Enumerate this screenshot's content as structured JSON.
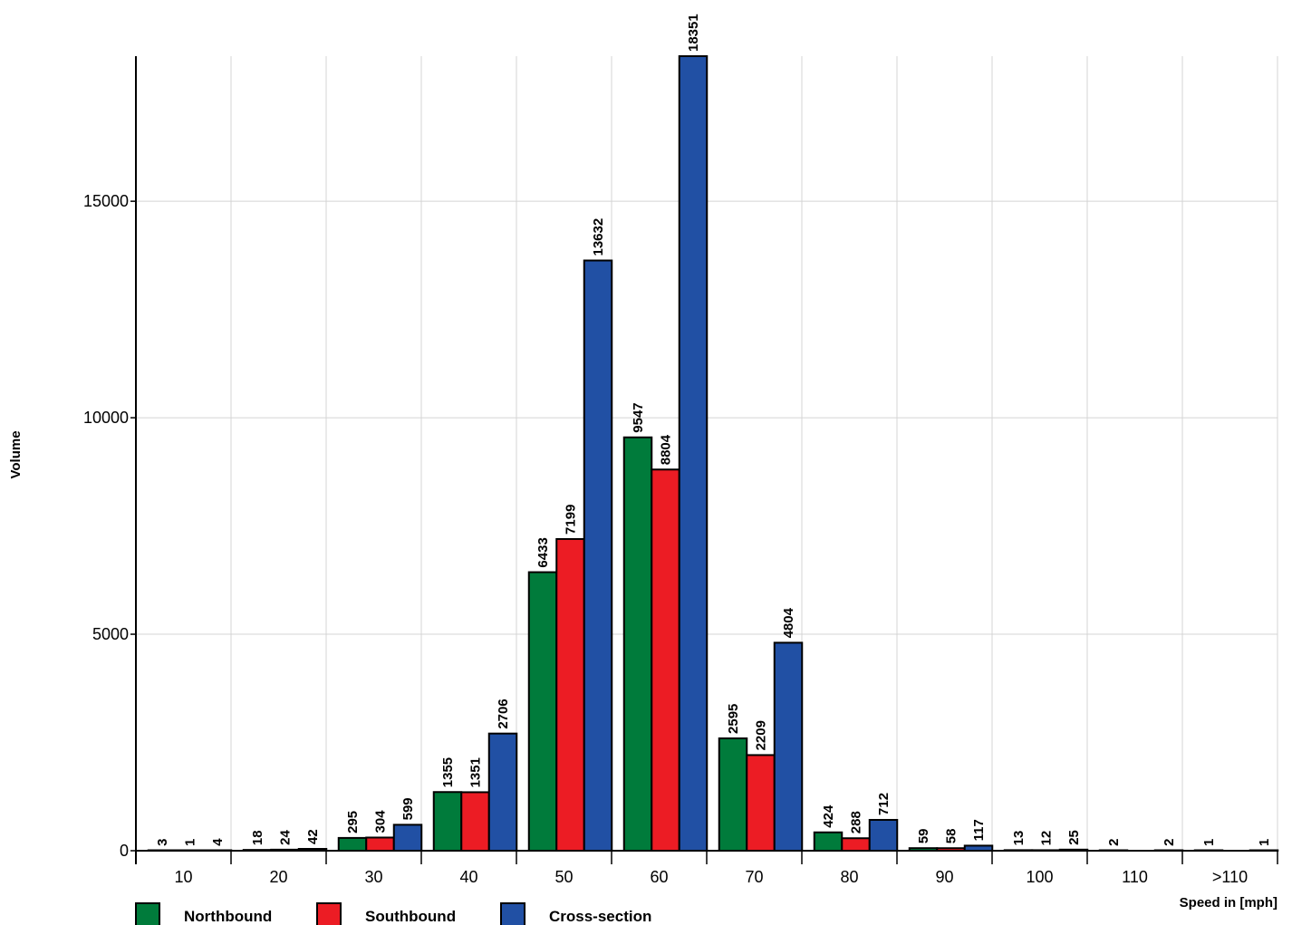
{
  "chart_data": {
    "type": "bar",
    "ylabel": "Volume",
    "xlabel": "Speed in [mph]",
    "ylim": [
      0,
      18351
    ],
    "y_ticks": [
      0,
      5000,
      10000,
      15000
    ],
    "grid": true,
    "legend_position": "bottom-left",
    "categories": [
      "10",
      "20",
      "30",
      "40",
      "50",
      "60",
      "70",
      "80",
      "90",
      "100",
      "110",
      ">110"
    ],
    "series": [
      {
        "name": "Northbound",
        "color": "#007b3b",
        "values": [
          3,
          18,
          295,
          1355,
          6433,
          9547,
          2595,
          424,
          59,
          13,
          2,
          1
        ],
        "labels": [
          "3",
          "18",
          "295",
          "1355",
          "6433",
          "9547",
          "2595",
          "424",
          "59",
          "13",
          "2",
          "1"
        ]
      },
      {
        "name": "Southbound",
        "color": "#ec1c24",
        "values": [
          1,
          24,
          304,
          1351,
          7199,
          8804,
          2209,
          288,
          58,
          12,
          0,
          0
        ],
        "labels": [
          "1",
          "24",
          "304",
          "1351",
          "7199",
          "8804",
          "2209",
          "288",
          "58",
          "12",
          "",
          ""
        ]
      },
      {
        "name": "Cross-section",
        "color": "#2150a4",
        "values": [
          4,
          42,
          599,
          2706,
          13632,
          18351,
          4804,
          712,
          117,
          25,
          2,
          1
        ],
        "labels": [
          "4",
          "42",
          "599",
          "2706",
          "13632",
          "18351",
          "4804",
          "712",
          "117",
          "25",
          "2",
          "1"
        ]
      }
    ]
  }
}
